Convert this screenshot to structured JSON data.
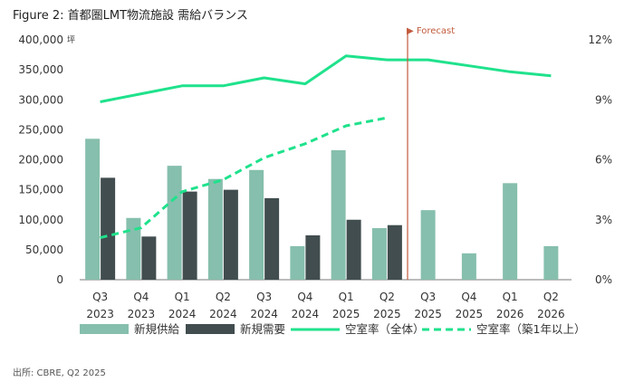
{
  "figure_title": "Figure 2: 首都圏LMT物流施設 需給バランス",
  "source": "出所: CBRE, Q2 2025",
  "forecast_label": "▶ Forecast",
  "colors": {
    "supply": "#86bfad",
    "demand": "#414d4f",
    "vacancy_all": "#1fe28c",
    "vacancy_new": "#1fe28c",
    "forecast_line": "#c25a3c",
    "axis": "#7a7a7a"
  },
  "chart_data": {
    "type": "bar",
    "categories": [
      [
        "Q3",
        "2023"
      ],
      [
        "Q4",
        "2023"
      ],
      [
        "Q1",
        "2024"
      ],
      [
        "Q2",
        "2024"
      ],
      [
        "Q3",
        "2024"
      ],
      [
        "Q4",
        "2024"
      ],
      [
        "Q1",
        "2025"
      ],
      [
        "Q2",
        "2025"
      ],
      [
        "Q3",
        "2025"
      ],
      [
        "Q4",
        "2025"
      ],
      [
        "Q1",
        "2026"
      ],
      [
        "Q2",
        "2026"
      ]
    ],
    "left_axis": {
      "unit": "坪",
      "ylim": [
        0,
        400000
      ],
      "ticks": [
        "0",
        "50,000",
        "100,000",
        "150,000",
        "200,000",
        "250,000",
        "300,000",
        "350,000",
        "400,000"
      ]
    },
    "right_axis": {
      "ylim": [
        0,
        12
      ],
      "ticks": [
        "0%",
        "3%",
        "6%",
        "9%",
        "12%"
      ]
    },
    "series": [
      {
        "name": "新規供給",
        "kind": "bar",
        "axis": "left",
        "values": [
          235000,
          103000,
          190000,
          168000,
          183000,
          56000,
          216000,
          86000,
          116000,
          44000,
          161000,
          56000
        ]
      },
      {
        "name": "新規需要",
        "kind": "bar",
        "axis": "left",
        "values": [
          170000,
          72000,
          147000,
          150000,
          136000,
          74000,
          100000,
          91000,
          null,
          null,
          null,
          null
        ]
      },
      {
        "name": "空室率（全体）",
        "kind": "line",
        "axis": "right",
        "values": [
          8.9,
          9.3,
          9.7,
          9.7,
          10.1,
          9.8,
          11.2,
          11.0,
          11.0,
          10.7,
          10.4,
          10.2
        ]
      },
      {
        "name": "空室率（築1年以上）",
        "kind": "dashed-line",
        "axis": "right",
        "values": [
          2.1,
          2.6,
          4.4,
          5.0,
          6.1,
          6.8,
          7.7,
          8.1,
          null,
          null,
          null,
          null
        ]
      }
    ],
    "forecast_start_index": 8,
    "legend_position": "bottom"
  }
}
